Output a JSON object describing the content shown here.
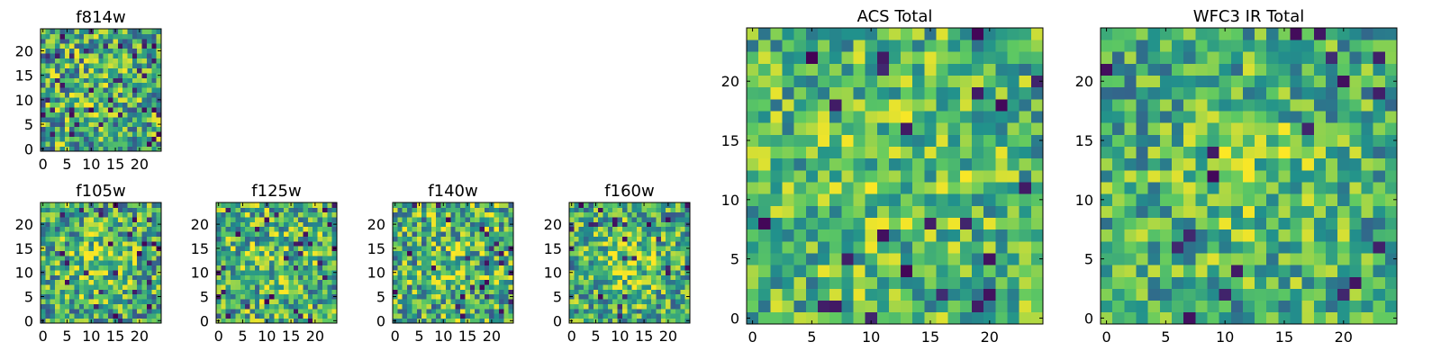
{
  "figure": {
    "colormap_name": "viridis",
    "colormap_stops": [
      "#440154",
      "#3b528b",
      "#21918c",
      "#5ec962",
      "#fde725"
    ],
    "axis_color": "#000000",
    "background": "#ffffff"
  },
  "chart_data": [
    {
      "type": "heatmap",
      "title": "f814w",
      "grid_size": 25,
      "xlim": [
        -0.5,
        24.5
      ],
      "ylim": [
        -0.5,
        24.5
      ],
      "xticks": [
        "0",
        "5",
        "10",
        "15",
        "20"
      ],
      "yticks": [
        "0",
        "5",
        "10",
        "15",
        "20"
      ],
      "value_range": [
        0,
        1
      ],
      "seed": 814,
      "mean_level": 0.6,
      "noise": 0.38,
      "center_boost": 0.05
    },
    {
      "type": "heatmap",
      "title": "f105w",
      "grid_size": 25,
      "xlim": [
        -0.5,
        24.5
      ],
      "ylim": [
        -0.5,
        24.5
      ],
      "xticks": [
        "0",
        "5",
        "10",
        "15",
        "20"
      ],
      "yticks": [
        "0",
        "5",
        "10",
        "15",
        "20"
      ],
      "value_range": [
        0,
        1
      ],
      "seed": 105,
      "mean_level": 0.58,
      "noise": 0.36,
      "center_boost": 0.18
    },
    {
      "type": "heatmap",
      "title": "f125w",
      "grid_size": 25,
      "xlim": [
        -0.5,
        24.5
      ],
      "ylim": [
        -0.5,
        24.5
      ],
      "xticks": [
        "0",
        "5",
        "10",
        "15",
        "20"
      ],
      "yticks": [
        "0",
        "5",
        "10",
        "15",
        "20"
      ],
      "value_range": [
        0,
        1
      ],
      "seed": 125,
      "mean_level": 0.62,
      "noise": 0.36,
      "center_boost": 0.1
    },
    {
      "type": "heatmap",
      "title": "f140w",
      "grid_size": 25,
      "xlim": [
        -0.5,
        24.5
      ],
      "ylim": [
        -0.5,
        24.5
      ],
      "xticks": [
        "0",
        "5",
        "10",
        "15",
        "20"
      ],
      "yticks": [
        "0",
        "5",
        "10",
        "15",
        "20"
      ],
      "value_range": [
        0,
        1
      ],
      "seed": 140,
      "mean_level": 0.62,
      "noise": 0.38,
      "center_boost": 0.1
    },
    {
      "type": "heatmap",
      "title": "f160w",
      "grid_size": 25,
      "xlim": [
        -0.5,
        24.5
      ],
      "ylim": [
        -0.5,
        24.5
      ],
      "xticks": [
        "0",
        "5",
        "10",
        "15",
        "20"
      ],
      "yticks": [
        "0",
        "5",
        "10",
        "15",
        "20"
      ],
      "value_range": [
        0,
        1
      ],
      "seed": 160,
      "mean_level": 0.6,
      "noise": 0.34,
      "center_boost": 0.18
    },
    {
      "type": "heatmap",
      "title": "ACS Total",
      "grid_size": 25,
      "xlim": [
        -0.5,
        24.5
      ],
      "ylim": [
        -0.5,
        24.5
      ],
      "xticks": [
        "0",
        "5",
        "10",
        "15",
        "20"
      ],
      "yticks": [
        "0",
        "5",
        "10",
        "15",
        "20"
      ],
      "value_range": [
        0,
        1
      ],
      "seed": 901,
      "mean_level": 0.66,
      "noise": 0.3,
      "center_boost": 0.06
    },
    {
      "type": "heatmap",
      "title": "WFC3 IR Total",
      "grid_size": 25,
      "xlim": [
        -0.5,
        24.5
      ],
      "ylim": [
        -0.5,
        24.5
      ],
      "xticks": [
        "0",
        "5",
        "10",
        "15",
        "20"
      ],
      "yticks": [
        "0",
        "5",
        "10",
        "15",
        "20"
      ],
      "value_range": [
        0,
        1
      ],
      "seed": 902,
      "mean_level": 0.6,
      "noise": 0.3,
      "center_boost": 0.16
    }
  ]
}
